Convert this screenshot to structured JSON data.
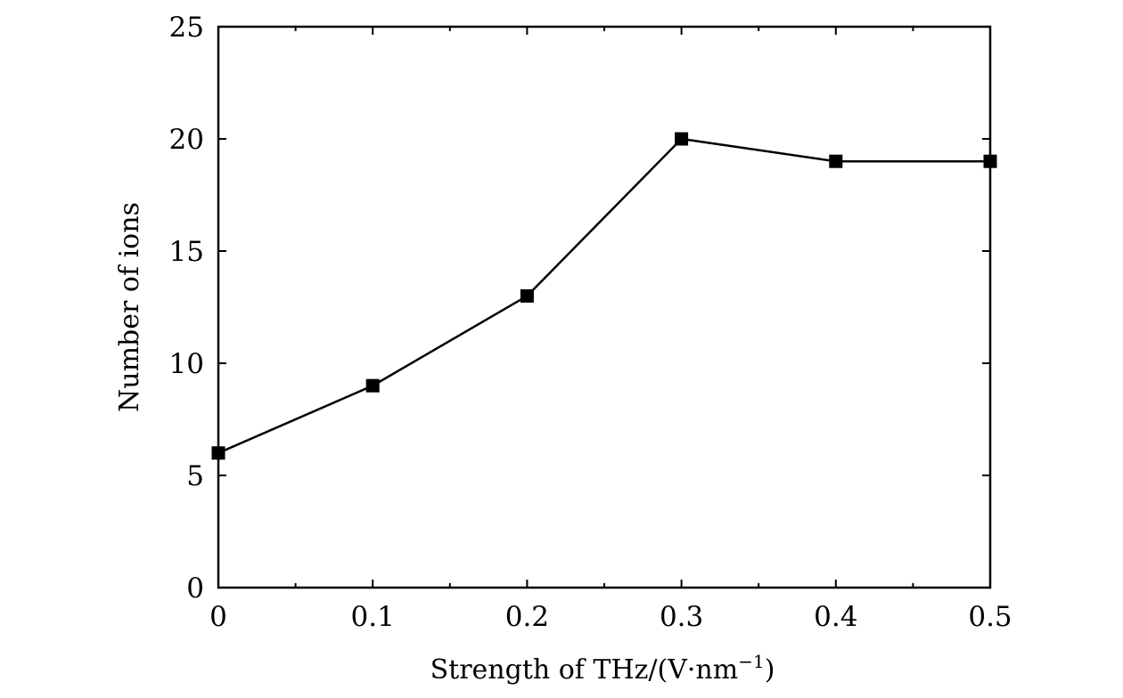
{
  "chart_data": {
    "type": "line",
    "xlabel": "Strength of THz/(V·nm",
    "xlabel_sup": "−1",
    "xlabel_close": ")",
    "ylabel": "Number of ions",
    "xlim": [
      0,
      0.5
    ],
    "ylim": [
      0,
      25
    ],
    "x_ticks": [
      0,
      0.1,
      0.2,
      0.3,
      0.4,
      0.5
    ],
    "x_tick_labels": [
      "0",
      "0.1",
      "0.2",
      "0.3",
      "0.4",
      "0.5"
    ],
    "x_minor_ticks": [
      0.05,
      0.15,
      0.25,
      0.35,
      0.45
    ],
    "y_ticks": [
      0,
      5,
      10,
      15,
      20,
      25
    ],
    "y_tick_labels": [
      "0",
      "5",
      "10",
      "15",
      "20",
      "25"
    ],
    "grid": false,
    "series": [
      {
        "x": [
          0,
          0.1,
          0.2,
          0.3,
          0.4,
          0.5
        ],
        "y": [
          6,
          9,
          13,
          20,
          19,
          19
        ],
        "marker": "square",
        "color": "#000000"
      }
    ]
  }
}
